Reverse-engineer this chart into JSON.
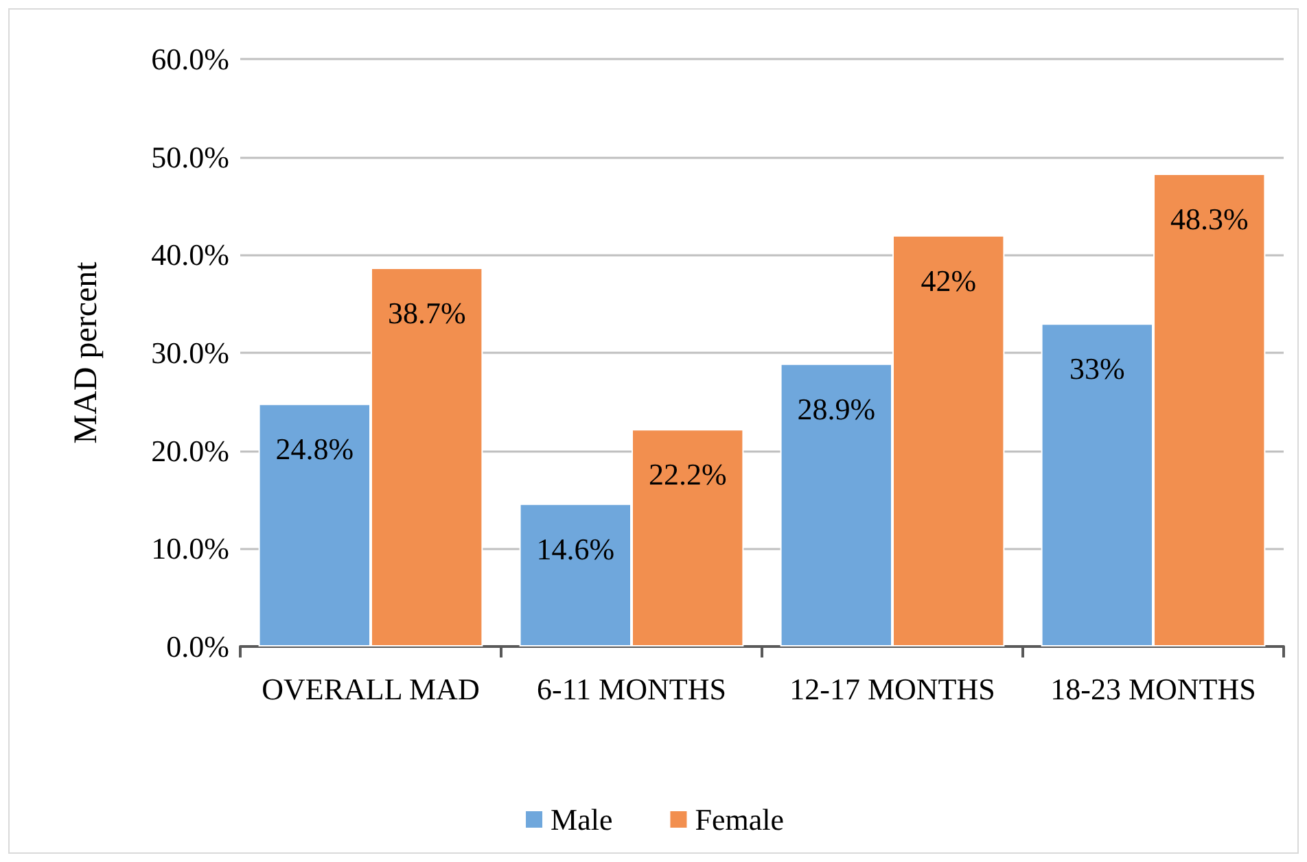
{
  "chart_data": {
    "type": "bar",
    "ylabel": "MAD percent",
    "categories": [
      "OVERALL MAD",
      "6-11 MONTHS",
      "12-17 MONTHS",
      "18-23 MONTHS"
    ],
    "series": [
      {
        "name": "Male",
        "color": "#6fa7dc",
        "values": [
          24.8,
          14.6,
          28.9,
          33
        ],
        "value_labels": [
          "24.8%",
          "14.6%",
          "28.9%",
          "33%"
        ]
      },
      {
        "name": "Female",
        "color": "#f28f4f",
        "values": [
          38.7,
          22.2,
          42,
          48.3
        ],
        "value_labels": [
          "38.7%",
          "22.2%",
          "42%",
          "48.3%"
        ]
      }
    ],
    "ylim": [
      0,
      60
    ],
    "yticks": [
      {
        "value": 0,
        "label": "0.0%"
      },
      {
        "value": 10,
        "label": "10.0%"
      },
      {
        "value": 20,
        "label": "20.0%"
      },
      {
        "value": 30,
        "label": "30.0%"
      },
      {
        "value": 40,
        "label": "40.0%"
      },
      {
        "value": 50,
        "label": "50.0%"
      },
      {
        "value": 60,
        "label": "60.0%"
      }
    ],
    "grid": "y",
    "legend": "bottom"
  }
}
